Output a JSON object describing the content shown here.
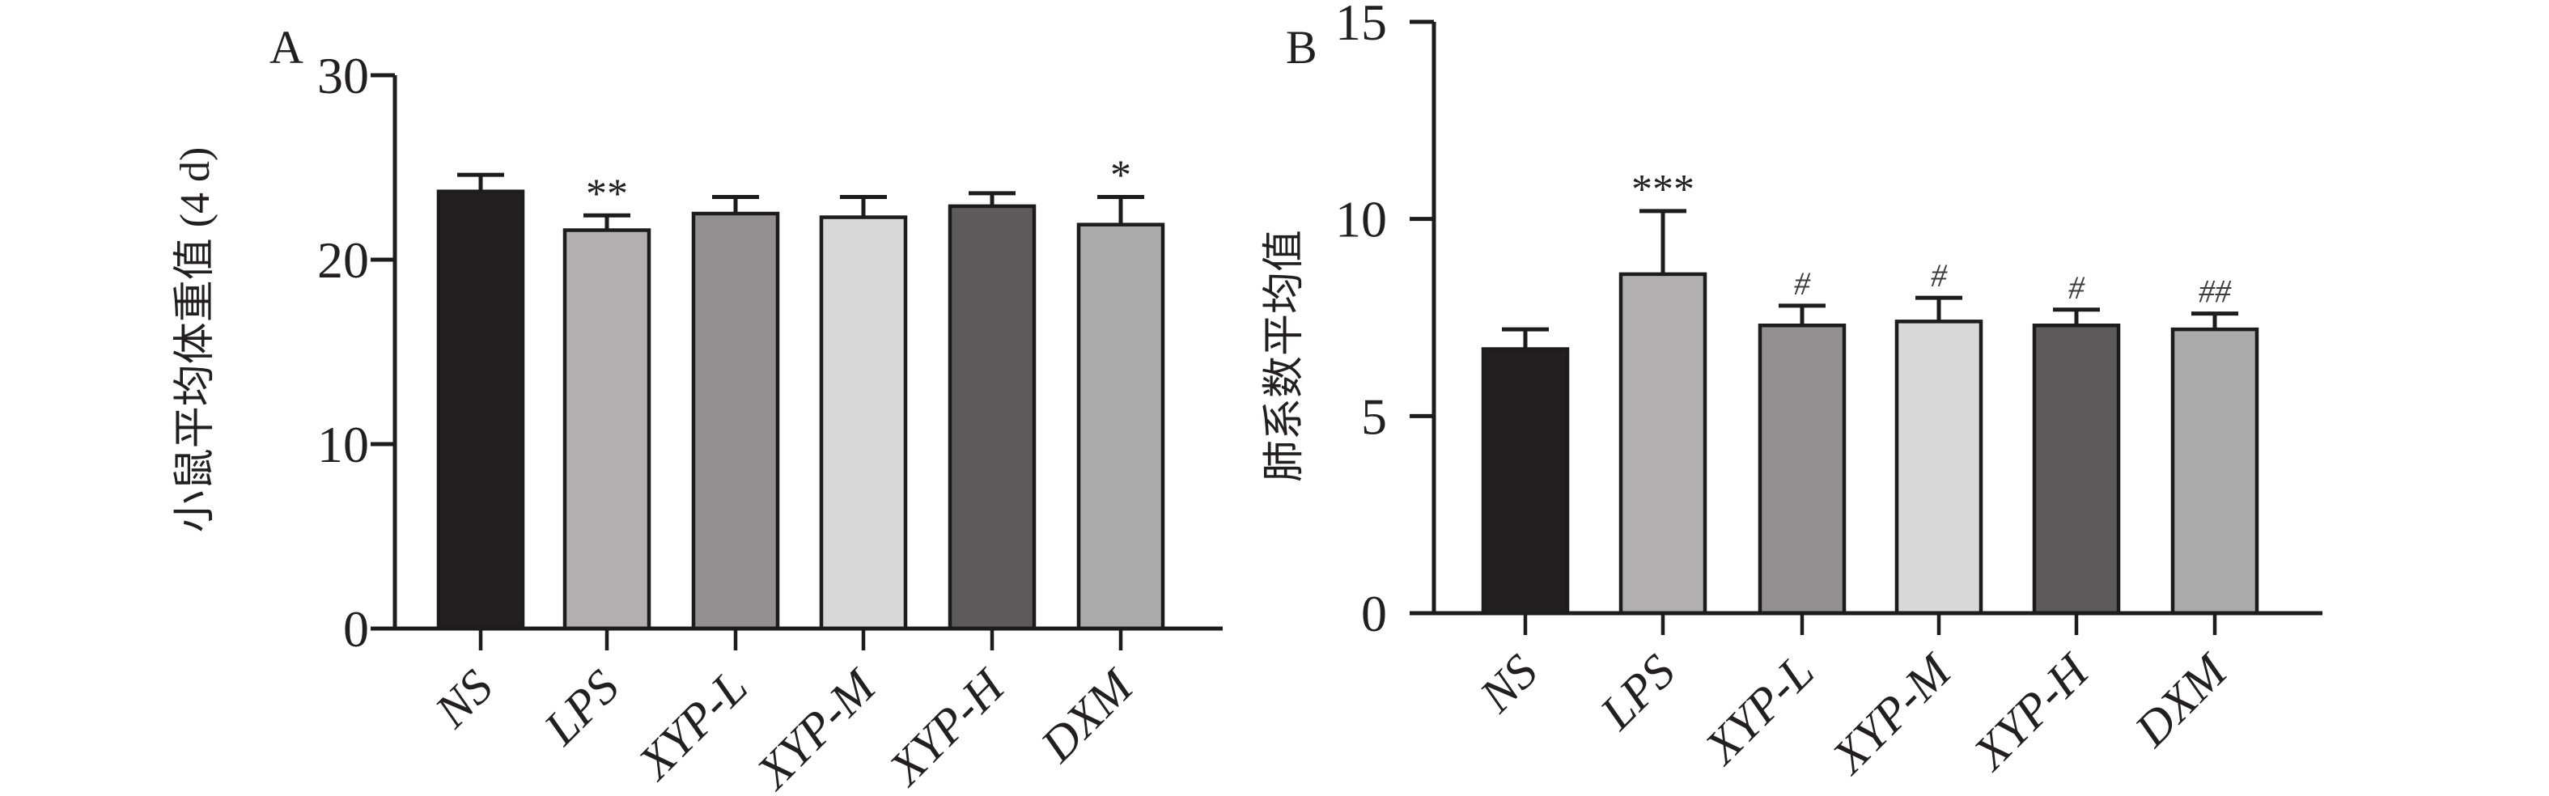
{
  "figure": {
    "background": "#ffffff",
    "axis_color": "#1c1c1c",
    "text_color": "#231f20",
    "hash_marker_color": "#3c3c3c"
  },
  "chart_data": [
    {
      "type": "bar",
      "panel_label": "A",
      "title": "",
      "xlabel": "",
      "ylabel": "小鼠平均体重值 (4 d)",
      "ylim": [
        0,
        30
      ],
      "yticks": [
        0,
        10,
        20,
        30
      ],
      "grid": false,
      "legend": "none",
      "categories": [
        "NS",
        "LPS",
        "XYP-L",
        "XYP-M",
        "XYP-H",
        "DXM"
      ],
      "values": [
        23.7,
        21.6,
        22.5,
        22.3,
        22.9,
        21.9
      ],
      "errors": [
        0.9,
        0.8,
        0.9,
        1.1,
        0.7,
        1.5
      ],
      "significance": [
        "",
        "**",
        "",
        "",
        "",
        "*"
      ],
      "bar_colors": [
        "#231f20",
        "#b1afaf",
        "#929090",
        "#d9d8d8",
        "#5d5a5b",
        "#acabab"
      ]
    },
    {
      "type": "bar",
      "panel_label": "B",
      "title": "",
      "xlabel": "",
      "ylabel": "肺系数平均值",
      "ylim": [
        0,
        15
      ],
      "yticks": [
        0,
        5,
        10,
        15
      ],
      "grid": false,
      "legend": "none",
      "categories": [
        "NS",
        "LPS",
        "XYP-L",
        "XYP-M",
        "XYP-H",
        "DXM"
      ],
      "values": [
        6.7,
        8.6,
        7.3,
        7.4,
        7.3,
        7.2
      ],
      "errors": [
        0.5,
        1.6,
        0.5,
        0.6,
        0.4,
        0.4
      ],
      "significance": [
        "",
        "***",
        "#",
        "#",
        "#",
        "##"
      ],
      "bar_colors": [
        "#231f20",
        "#b1afaf",
        "#929090",
        "#d9d8d8",
        "#5d5a5b",
        "#acabab"
      ]
    }
  ]
}
